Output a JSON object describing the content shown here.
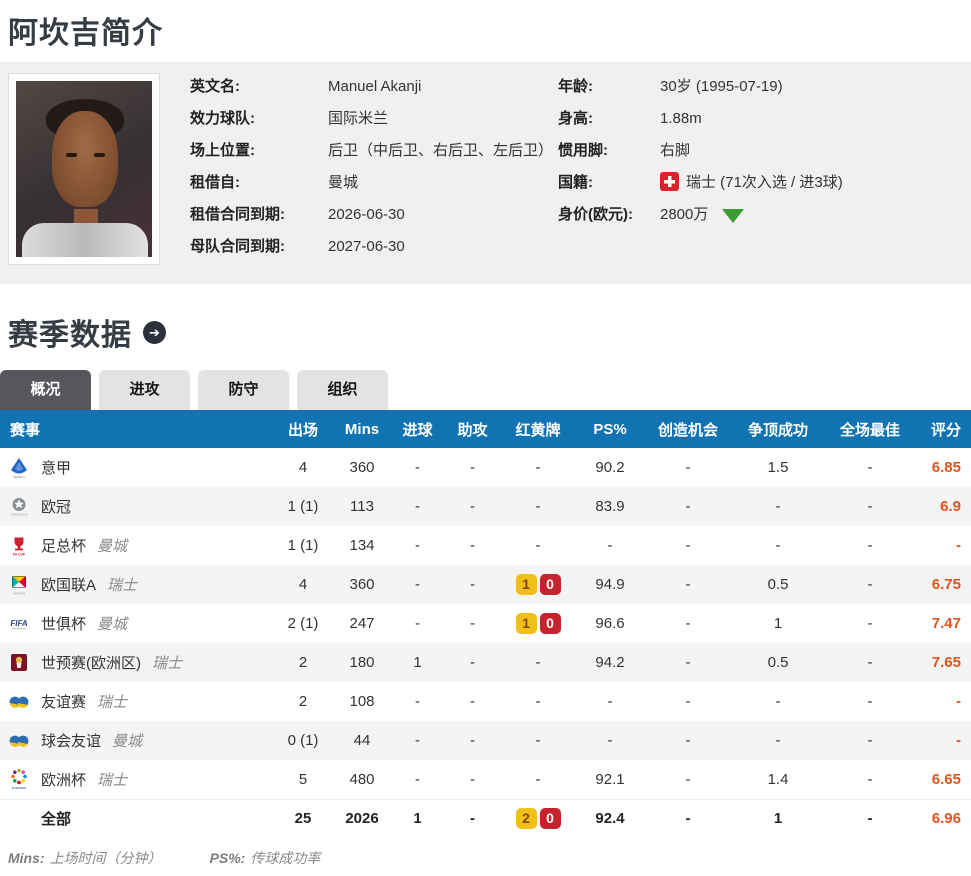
{
  "page": {
    "title": "阿坎吉简介"
  },
  "profile": {
    "fields_left": [
      {
        "label": "英文名:",
        "value": "Manuel Akanji"
      },
      {
        "label": "效力球队:",
        "value": "国际米兰"
      },
      {
        "label": "场上位置:",
        "value": "后卫（中后卫、右后卫、左后卫）"
      },
      {
        "label": "租借自:",
        "value": "曼城"
      },
      {
        "label": "租借合同到期:",
        "value": "2026-06-30"
      },
      {
        "label": "母队合同到期:",
        "value": "2027-06-30"
      }
    ],
    "fields_right": [
      {
        "label": "年龄:",
        "value": "30岁 (1995-07-19)"
      },
      {
        "label": "身高:",
        "value": "1.88m"
      },
      {
        "label": "惯用脚:",
        "value": "右脚"
      },
      {
        "label": "国籍:",
        "value": "瑞士 (71次入选 / 进3球)",
        "icon": "swiss-flag"
      },
      {
        "label": "身价(欧元):",
        "value": "2800万",
        "trend": "down"
      }
    ]
  },
  "season": {
    "heading": "赛季数据",
    "tabs": [
      {
        "key": "overview",
        "label": "概况",
        "active": true
      },
      {
        "key": "attack",
        "label": "进攻",
        "active": false
      },
      {
        "key": "defense",
        "label": "防守",
        "active": false
      },
      {
        "key": "organization",
        "label": "组织",
        "active": false
      }
    ]
  },
  "stats_table": {
    "headers": [
      "赛事",
      "出场",
      "Mins",
      "进球",
      "助攻",
      "红黄牌",
      "PS%",
      "创造机会",
      "争顶成功",
      "全场最佳",
      "评分"
    ],
    "rows": [
      {
        "icon": "serie-a",
        "competition": "意甲",
        "team": "",
        "apps": "4",
        "mins": "360",
        "goals": "-",
        "assists": "-",
        "cards": "-",
        "ps_pct": "90.2",
        "chances_created": "-",
        "aerials_won": "1.5",
        "motm": "-",
        "rating": "6.85",
        "total": false
      },
      {
        "icon": "champions-league",
        "competition": "欧冠",
        "team": "",
        "apps": "1 (1)",
        "mins": "113",
        "goals": "-",
        "assists": "-",
        "cards": "-",
        "ps_pct": "83.9",
        "chances_created": "-",
        "aerials_won": "-",
        "motm": "-",
        "rating": "6.9",
        "total": false
      },
      {
        "icon": "fa-cup",
        "competition": "足总杯",
        "team": "曼城",
        "apps": "1 (1)",
        "mins": "134",
        "goals": "-",
        "assists": "-",
        "cards": "-",
        "ps_pct": "-",
        "chances_created": "-",
        "aerials_won": "-",
        "motm": "-",
        "rating": "-",
        "total": false
      },
      {
        "icon": "nations-league",
        "competition": "欧国联A",
        "team": "瑞士",
        "apps": "4",
        "mins": "360",
        "goals": "-",
        "assists": "-",
        "cards": {
          "yellow": "1",
          "red": "0"
        },
        "ps_pct": "94.9",
        "chances_created": "-",
        "aerials_won": "0.5",
        "motm": "-",
        "rating": "6.75",
        "total": false
      },
      {
        "icon": "fifa-club-world-cup",
        "competition": "世俱杯",
        "team": "曼城",
        "apps": "2 (1)",
        "mins": "247",
        "goals": "-",
        "assists": "-",
        "cards": {
          "yellow": "1",
          "red": "0"
        },
        "ps_pct": "96.6",
        "chances_created": "-",
        "aerials_won": "1",
        "motm": "-",
        "rating": "7.47",
        "total": false
      },
      {
        "icon": "world-cup-qualifiers",
        "competition": "世预赛(欧洲区)",
        "team": "瑞士",
        "apps": "2",
        "mins": "180",
        "goals": "1",
        "assists": "-",
        "cards": "-",
        "ps_pct": "94.2",
        "chances_created": "-",
        "aerials_won": "0.5",
        "motm": "-",
        "rating": "7.65",
        "total": false
      },
      {
        "icon": "friendly",
        "competition": "友谊赛",
        "team": "瑞士",
        "apps": "2",
        "mins": "108",
        "goals": "-",
        "assists": "-",
        "cards": "-",
        "ps_pct": "-",
        "chances_created": "-",
        "aerials_won": "-",
        "motm": "-",
        "rating": "-",
        "total": false
      },
      {
        "icon": "club-friendly",
        "competition": "球会友谊",
        "team": "曼城",
        "apps": "0 (1)",
        "mins": "44",
        "goals": "-",
        "assists": "-",
        "cards": "-",
        "ps_pct": "-",
        "chances_created": "-",
        "aerials_won": "-",
        "motm": "-",
        "rating": "-",
        "total": false
      },
      {
        "icon": "euro",
        "competition": "欧洲杯",
        "team": "瑞士",
        "apps": "5",
        "mins": "480",
        "goals": "-",
        "assists": "-",
        "cards": "-",
        "ps_pct": "92.1",
        "chances_created": "-",
        "aerials_won": "1.4",
        "motm": "-",
        "rating": "6.65",
        "total": false
      },
      {
        "icon": "",
        "competition": "全部",
        "team": "",
        "apps": "25",
        "mins": "2026",
        "goals": "1",
        "assists": "-",
        "cards": {
          "yellow": "2",
          "red": "0"
        },
        "ps_pct": "92.4",
        "chances_created": "-",
        "aerials_won": "1",
        "motm": "-",
        "rating": "6.96",
        "total": true
      }
    ]
  },
  "footnotes": [
    {
      "abbr": "Mins:",
      "desc": "上场时间（分钟）"
    },
    {
      "abbr": "PS%:",
      "desc": "传球成功率"
    }
  ],
  "colors": {
    "table_header_bg": "#1173b2",
    "rating_text": "#e2541c",
    "yellow_card": "#f0c018",
    "red_card": "#c5242e",
    "active_tab_bg": "#56565c",
    "panel_bg": "#f0f0f0",
    "market_value_trend_green": "#3c9b35",
    "swiss_flag_red": "#d8232a"
  }
}
